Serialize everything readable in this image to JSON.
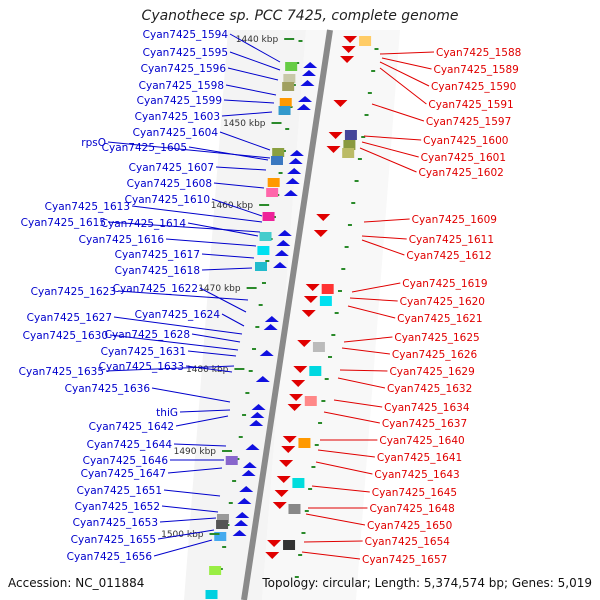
{
  "title": "Cyanothece sp. PCC 7425, complete genome",
  "accession": "Accession: NC_011884",
  "summary": "Topology: circular; Length: 5,374,574 bp; Genes: 5,019",
  "colors": {
    "left_labels": "#0000cc",
    "right_labels": "#e00000",
    "backbone": "#888888",
    "tick": "#2a8a2a"
  },
  "ticks": [
    "1440 kbp",
    "1450 kbp",
    "1460 kbp",
    "1470 kbp",
    "1480 kbp",
    "1490 kbp",
    "1500 kbp"
  ],
  "left_labels": [
    "Cyan7425_1594",
    "Cyan7425_1595",
    "Cyan7425_1596",
    "Cyan7425_1598",
    "Cyan7425_1599",
    "Cyan7425_1603",
    "Cyan7425_1604",
    "rpsO",
    "Cyan7425_1605",
    "Cyan7425_1607",
    "Cyan7425_1608",
    "Cyan7425_1610",
    "Cyan7425_1613",
    "Cyan7425_1615",
    "Cyan7425_1614",
    "Cyan7425_1616",
    "Cyan7425_1617",
    "Cyan7425_1618",
    "Cyan7425_1623",
    "Cyan7425_1622",
    "Cyan7425_1624",
    "Cyan7425_1627",
    "Cyan7425_1628",
    "Cyan7425_1630",
    "Cyan7425_1631",
    "Cyan7425_1635",
    "Cyan7425_1633",
    "Cyan7425_1636",
    "thiG",
    "Cyan7425_1642",
    "Cyan7425_1644",
    "Cyan7425_1646",
    "Cyan7425_1647",
    "Cyan7425_1651",
    "Cyan7425_1652",
    "Cyan7425_1653",
    "Cyan7425_1655",
    "Cyan7425_1656"
  ],
  "right_labels": [
    "Cyan7425_1588",
    "Cyan7425_1589",
    "Cyan7425_1590",
    "Cyan7425_1591",
    "Cyan7425_1597",
    "Cyan7425_1600",
    "Cyan7425_1601",
    "Cyan7425_1602",
    "Cyan7425_1609",
    "Cyan7425_1611",
    "Cyan7425_1612",
    "Cyan7425_1619",
    "Cyan7425_1620",
    "Cyan7425_1621",
    "Cyan7425_1625",
    "Cyan7425_1626",
    "Cyan7425_1629",
    "Cyan7425_1632",
    "Cyan7425_1634",
    "Cyan7425_1637",
    "Cyan7425_1640",
    "Cyan7425_1641",
    "Cyan7425_1643",
    "Cyan7425_1645",
    "Cyan7425_1648",
    "Cyan7425_1650",
    "Cyan7425_1654",
    "Cyan7425_1657"
  ]
}
